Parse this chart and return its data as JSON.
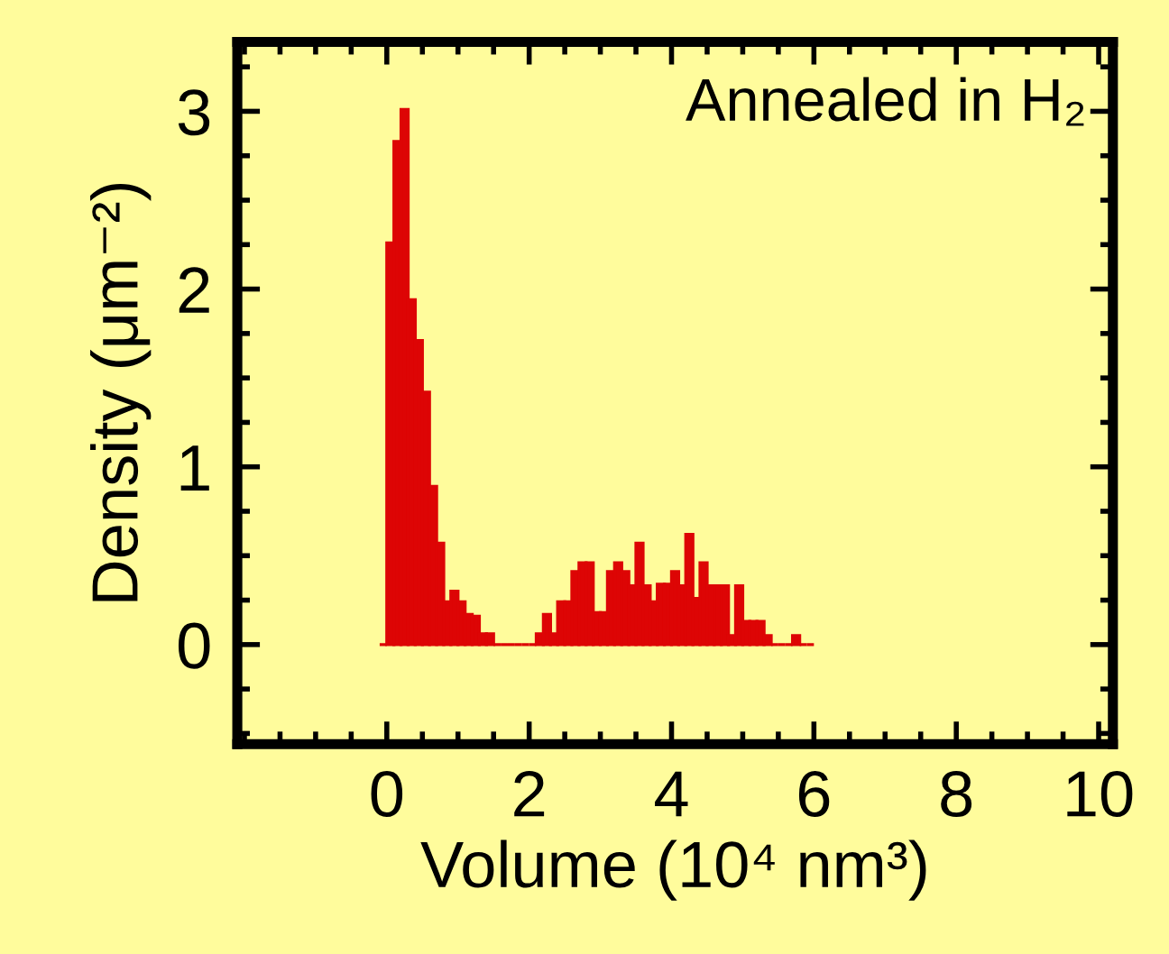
{
  "chart_data": {
    "type": "histogram",
    "xlabel": "Volume (10⁴ nm³)",
    "ylabel": "Density (μm⁻²)",
    "annotations": [
      "Annealed in H₂"
    ],
    "bins": [
      -0.1,
      0.0,
      0.1,
      0.2,
      0.3,
      0.4,
      0.5,
      0.6,
      0.7,
      0.8,
      0.9,
      1.0,
      1.1,
      1.2,
      1.3,
      1.4,
      1.5,
      1.6,
      1.7,
      1.8,
      1.9,
      2.0,
      2.1,
      2.2,
      2.3,
      2.4,
      2.5,
      2.6,
      2.7,
      2.8,
      2.9,
      3.0,
      3.1,
      3.2,
      3.3,
      3.4,
      3.5,
      3.6,
      3.7,
      3.8,
      3.9,
      4.0,
      4.1,
      4.2,
      4.3,
      4.4,
      4.5,
      4.6,
      4.7,
      4.8,
      4.9,
      5.0,
      5.1,
      5.2,
      5.3,
      5.4,
      5.5,
      5.6,
      5.7,
      5.8,
      5.9,
      6.0
    ],
    "values": [
      0,
      2.26,
      2.83,
      3.01,
      1.94,
      1.71,
      1.42,
      0.89,
      0.57,
      0.24,
      0.3,
      0.24,
      0.17,
      0.16,
      0.06,
      0.06,
      0,
      0,
      0,
      0,
      0,
      0,
      0.06,
      0.17,
      0.06,
      0.24,
      0.24,
      0.41,
      0.46,
      0.46,
      0.18,
      0.18,
      0.41,
      0.46,
      0.41,
      0.33,
      0.57,
      0.33,
      0.24,
      0.34,
      0.34,
      0.41,
      0.33,
      0.62,
      0.26,
      0.46,
      0.33,
      0.33,
      0.33,
      0.05,
      0.33,
      0.13,
      0.13,
      0.13,
      0.05,
      0,
      0,
      0,
      0.05,
      0,
      0
    ],
    "color": "#dd0505",
    "xlim": [
      -2.1,
      10.2
    ],
    "ylim": [
      -0.56,
      3.39
    ],
    "xticks": [
      0,
      2,
      4,
      6,
      8,
      10
    ],
    "yticks": [
      0,
      1,
      2,
      3
    ],
    "grid": false
  }
}
